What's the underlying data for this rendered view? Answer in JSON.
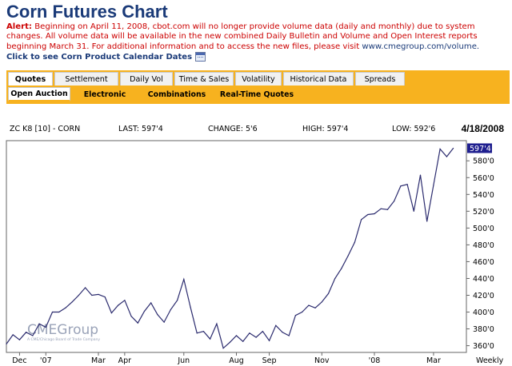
{
  "page": {
    "title": "Corn Futures Chart",
    "alert_label": "Alert:",
    "alert_text": "Beginning on April 11, 2008, cbot.com will no longer provide volume data (daily and monthly) due to system changes. All volume data will be available in the new combined Daily Bulletin and Volume and Open Interest reports beginning March 31.  For additional information and to access the new files, please visit ",
    "alert_link": "www.cmegroup.com/volume.",
    "calendar_link": "Click to see Corn Product Calendar Dates",
    "calendar_icon": "calendar-icon"
  },
  "tabs": [
    "Quotes",
    "Settlement",
    "Daily Vol",
    "Time & Sales",
    "Volatility",
    "Historical Data",
    "Spreads"
  ],
  "active_tab": "Quotes",
  "subtabs": [
    "Open Auction",
    "Electronic",
    "Combinations",
    "Real-Time Quotes"
  ],
  "active_subtab": "Open Auction",
  "chart_header": {
    "symbol": "ZC K8 [10] - CORN",
    "last": "LAST: 597'4",
    "change": "CHANGE: 5'6",
    "high": "HIGH: 597'4",
    "low": "LOW: 592'6",
    "date": "4/18/2008"
  },
  "chart_data": {
    "type": "line",
    "period": "Weekly",
    "last_value_label": "597'4",
    "ylim": [
      352,
      604
    ],
    "yticks": [
      360,
      380,
      400,
      420,
      440,
      460,
      480,
      500,
      520,
      540,
      560,
      580
    ],
    "ytick_labels": [
      "360'0",
      "380'0",
      "400'0",
      "420'0",
      "440'0",
      "460'0",
      "480'0",
      "500'0",
      "520'0",
      "540'0",
      "560'0",
      "580'0"
    ],
    "xticks": [
      {
        "label": "Dec",
        "week": 2
      },
      {
        "label": "'07",
        "week": 6
      },
      {
        "label": "Mar",
        "week": 14
      },
      {
        "label": "Apr",
        "week": 18
      },
      {
        "label": "Jun",
        "week": 27
      },
      {
        "label": "Aug",
        "week": 35
      },
      {
        "label": "Sep",
        "week": 40
      },
      {
        "label": "Nov",
        "week": 48
      },
      {
        "label": "'08",
        "week": 56
      },
      {
        "label": "Mar",
        "week": 65
      }
    ],
    "series": [
      {
        "values": [
          362,
          373,
          367,
          376,
          372,
          386,
          382,
          400,
          400,
          405,
          412,
          420,
          429,
          420,
          421,
          418,
          399,
          408,
          414,
          395,
          387,
          401,
          411,
          397,
          388,
          403,
          414,
          439,
          406,
          375,
          377,
          368,
          386,
          357,
          364,
          372,
          365,
          375,
          370,
          377,
          366,
          384,
          376,
          372,
          396,
          400,
          408,
          405,
          412,
          422,
          440,
          452,
          467,
          483,
          510,
          516,
          517,
          523,
          522,
          532,
          550,
          552,
          520,
          563,
          508,
          551,
          594,
          585,
          595
        ]
      }
    ],
    "watermark": "CMEGroup",
    "watermark_sub": "A CME/Chicago Board of Trade Company"
  }
}
